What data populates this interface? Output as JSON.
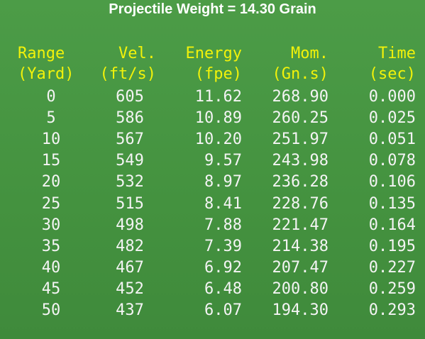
{
  "title": "Projectile Weight = 14.30 Grain",
  "table": {
    "header": [
      [
        "Range",
        "Vel.",
        "Energy",
        "Mom.",
        "Time"
      ],
      [
        "(Yard)",
        "(ft/s)",
        "(fpe)",
        "(Gn.s)",
        "(sec)"
      ]
    ],
    "rows": [
      [
        "0",
        "605",
        "11.62",
        "268.90",
        "0.000"
      ],
      [
        "5",
        "586",
        "10.89",
        "260.25",
        "0.025"
      ],
      [
        "10",
        "567",
        "10.20",
        "251.97",
        "0.051"
      ],
      [
        "15",
        "549",
        "9.57",
        "243.98",
        "0.078"
      ],
      [
        "20",
        "532",
        "8.97",
        "236.28",
        "0.106"
      ],
      [
        "25",
        "515",
        "8.41",
        "228.76",
        "0.135"
      ],
      [
        "30",
        "498",
        "7.88",
        "221.47",
        "0.164"
      ],
      [
        "35",
        "482",
        "7.39",
        "214.38",
        "0.195"
      ],
      [
        "40",
        "467",
        "6.92",
        "207.47",
        "0.227"
      ],
      [
        "45",
        "452",
        "6.48",
        "200.80",
        "0.259"
      ],
      [
        "50",
        "437",
        "6.07",
        "194.30",
        "0.293"
      ]
    ]
  }
}
